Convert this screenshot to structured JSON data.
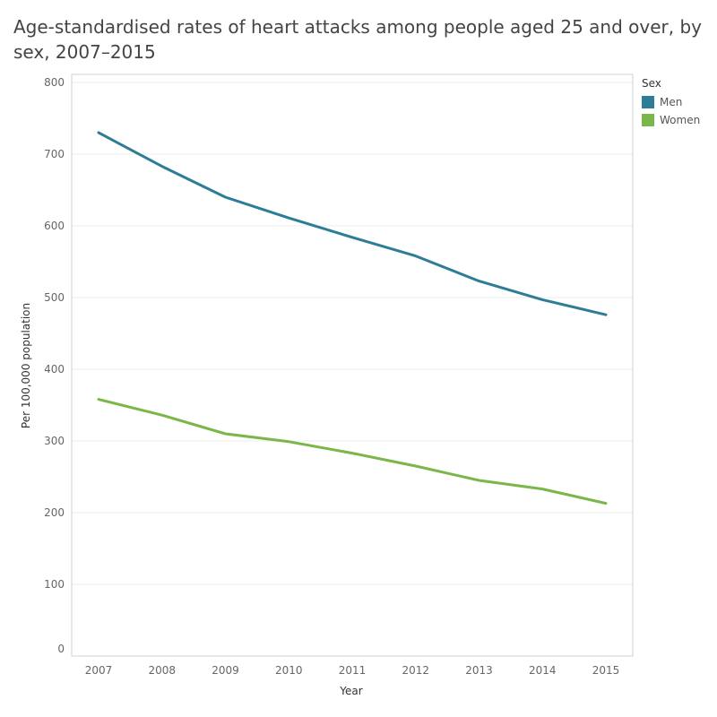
{
  "chart_data": {
    "type": "line",
    "title": "Age-standardised rates of heart attacks among people aged 25 and over, by sex, 2007–2015",
    "xlabel": "Year",
    "ylabel": "Per 100,000 population",
    "x": [
      "2007",
      "2008",
      "2009",
      "2010",
      "2011",
      "2012",
      "2013",
      "2014",
      "2015"
    ],
    "ylim": [
      0,
      800
    ],
    "yticks": [
      0,
      100,
      200,
      300,
      400,
      500,
      600,
      700,
      800
    ],
    "grid": true,
    "legend": {
      "title": "Sex",
      "placement": "right"
    },
    "series": [
      {
        "name": "Men",
        "color": "#2e7d96",
        "values": [
          730,
          683,
          640,
          611,
          584,
          558,
          523,
          497,
          476
        ]
      },
      {
        "name": "Women",
        "color": "#7ab648",
        "values": [
          358,
          336,
          310,
          299,
          283,
          265,
          245,
          233,
          213
        ]
      }
    ]
  }
}
